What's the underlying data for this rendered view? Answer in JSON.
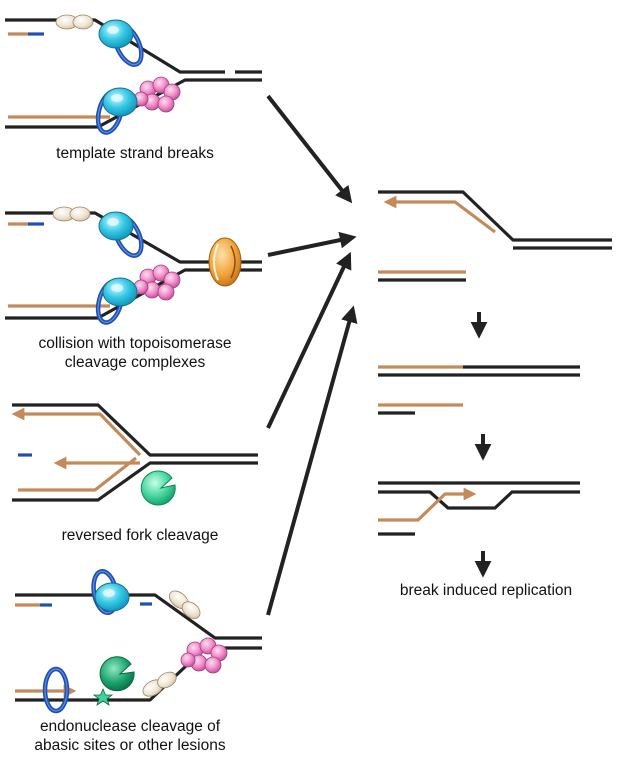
{
  "colors": {
    "dna": "#222222",
    "nascent_strand": "#c48a5a",
    "primer": "#1f4fb0",
    "cmg_helicase": "#36c9e6",
    "sliding_clamp": "#1f4fb0",
    "polymerase": "#f08cc8",
    "topoisomerase": "#f2a33a",
    "nuclease": "#3fd39a",
    "lesion": "#3fd39a",
    "accessory_protein": "#eee2d0",
    "arrow": "#222222"
  },
  "panels": [
    {
      "caption_lines": [
        "template strand breaks"
      ]
    },
    {
      "caption_lines": [
        "collision with topoisomerase",
        "cleavage complexes"
      ]
    },
    {
      "caption_lines": [
        "reversed fork cleavage"
      ]
    },
    {
      "caption_lines": [
        "endonuclease cleavage of",
        "abasic sites or other lesions"
      ]
    }
  ],
  "outcome": {
    "caption": "break induced replication"
  },
  "icons": [
    "cmg-helicase-icon",
    "pcna-clamp-icon",
    "polymerase-icon",
    "topoisomerase-icon",
    "nuclease-icon",
    "lesion-star-icon"
  ]
}
